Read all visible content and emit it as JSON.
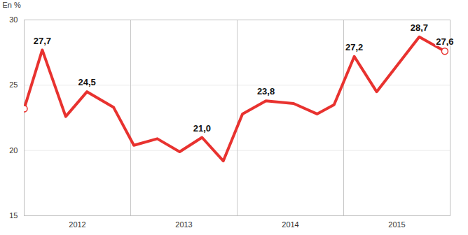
{
  "chart_data": {
    "type": "line",
    "ylabel": "En %",
    "x": [
      2012.0,
      2012.17,
      2012.39,
      2012.59,
      2012.84,
      2013.03,
      2013.25,
      2013.46,
      2013.67,
      2013.87,
      2014.05,
      2014.27,
      2014.53,
      2014.75,
      2014.91,
      2015.1,
      2015.31,
      2015.71,
      2015.95
    ],
    "values": [
      23.2,
      27.7,
      22.6,
      24.5,
      23.3,
      20.4,
      20.9,
      19.9,
      21.0,
      19.2,
      22.8,
      23.8,
      23.6,
      22.8,
      23.5,
      27.2,
      24.5,
      28.7,
      27.6
    ],
    "value_labels": [
      null,
      "27,7",
      null,
      "24,5",
      null,
      null,
      null,
      null,
      "21,0",
      null,
      null,
      "23,8",
      null,
      null,
      null,
      "27,2",
      null,
      "28,7",
      "27,6"
    ],
    "color": "#e8322f",
    "xlim": [
      2012,
      2016
    ],
    "xticks": [
      {
        "value": 2012.5,
        "label": "2012"
      },
      {
        "value": 2013.5,
        "label": "2013"
      },
      {
        "value": 2014.5,
        "label": "2014"
      },
      {
        "value": 2015.5,
        "label": "2015"
      }
    ],
    "ylim": [
      15,
      30
    ],
    "yticks": [
      15,
      20,
      25,
      30
    ],
    "grid": true,
    "data_labels": true
  }
}
